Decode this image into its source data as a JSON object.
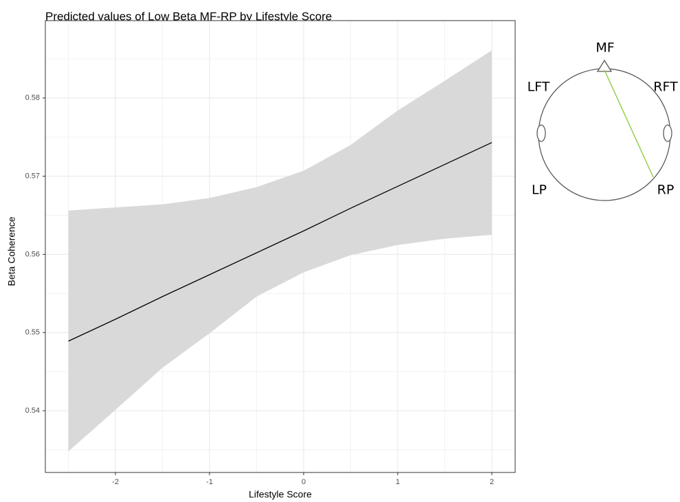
{
  "chart_data": {
    "type": "line",
    "title": "Predicted values of Low Beta MF-RP by Lifestyle Score",
    "x_label": "Lifestyle Score",
    "y_label": "Beta Coherence",
    "x": [
      -2.5,
      -2,
      -1.5,
      -1,
      -0.5,
      0,
      0.5,
      1,
      1.5,
      2
    ],
    "values": [
      0.5489,
      0.5517,
      0.5546,
      0.5574,
      0.5602,
      0.563,
      0.5659,
      0.5687,
      0.5715,
      0.5743
    ],
    "lower": [
      0.5348,
      0.5401,
      0.5455,
      0.5499,
      0.5546,
      0.5577,
      0.5599,
      0.5612,
      0.562,
      0.5625
    ],
    "upper": [
      0.5656,
      0.566,
      0.5664,
      0.5672,
      0.5686,
      0.5707,
      0.574,
      0.5784,
      0.5822,
      0.5861
    ],
    "color": "#000000",
    "band_color": "#d9d9d9",
    "xlim": [
      -2.745,
      2.248
    ],
    "ylim": [
      0.5321,
      0.5899
    ],
    "xticks": [
      -2,
      -1,
      0,
      1,
      2
    ],
    "yticks": [
      0.54,
      0.55,
      0.56,
      0.57,
      0.58
    ],
    "grid": true
  },
  "diagram": {
    "labels": {
      "mf": "MF",
      "lft": "LFT",
      "rft": "RFT",
      "lp": "LP",
      "rp": "RP"
    },
    "connection_color": "#92d050"
  }
}
